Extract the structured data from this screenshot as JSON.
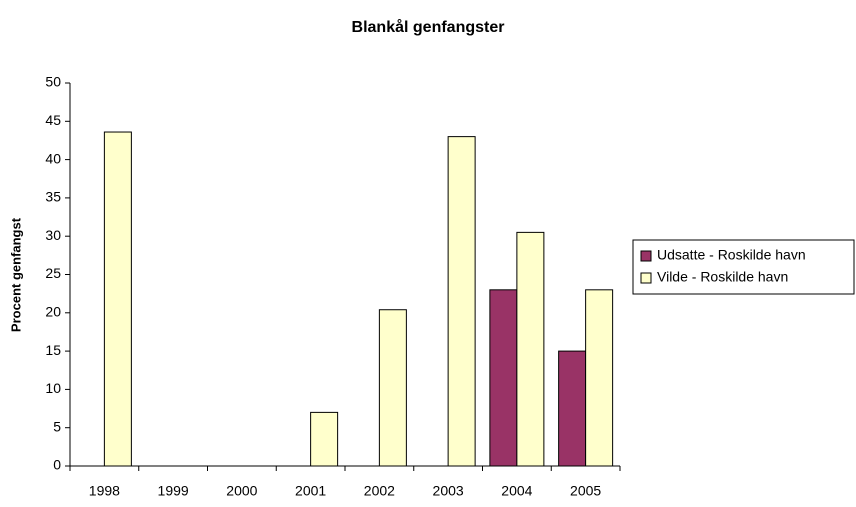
{
  "chart_data": {
    "type": "bar",
    "title": "Blankål genfangster",
    "y_label": "Procent genfangst",
    "categories": [
      "1998",
      "1999",
      "2000",
      "2001",
      "2002",
      "2003",
      "2004",
      "2005"
    ],
    "series": [
      {
        "name": "Udsatte - Roskilde havn",
        "color": "#993366",
        "values": [
          null,
          null,
          null,
          null,
          null,
          null,
          23,
          15
        ]
      },
      {
        "name": "Vilde - Roskilde havn",
        "color": "#ffffcc",
        "values": [
          43.6,
          null,
          null,
          7,
          20.4,
          43,
          30.5,
          23
        ]
      }
    ],
    "ylim": [
      0,
      50
    ],
    "yticks": [
      0,
      5,
      10,
      15,
      20,
      25,
      30,
      35,
      40,
      45,
      50
    ],
    "grid": false,
    "legend": "right"
  }
}
